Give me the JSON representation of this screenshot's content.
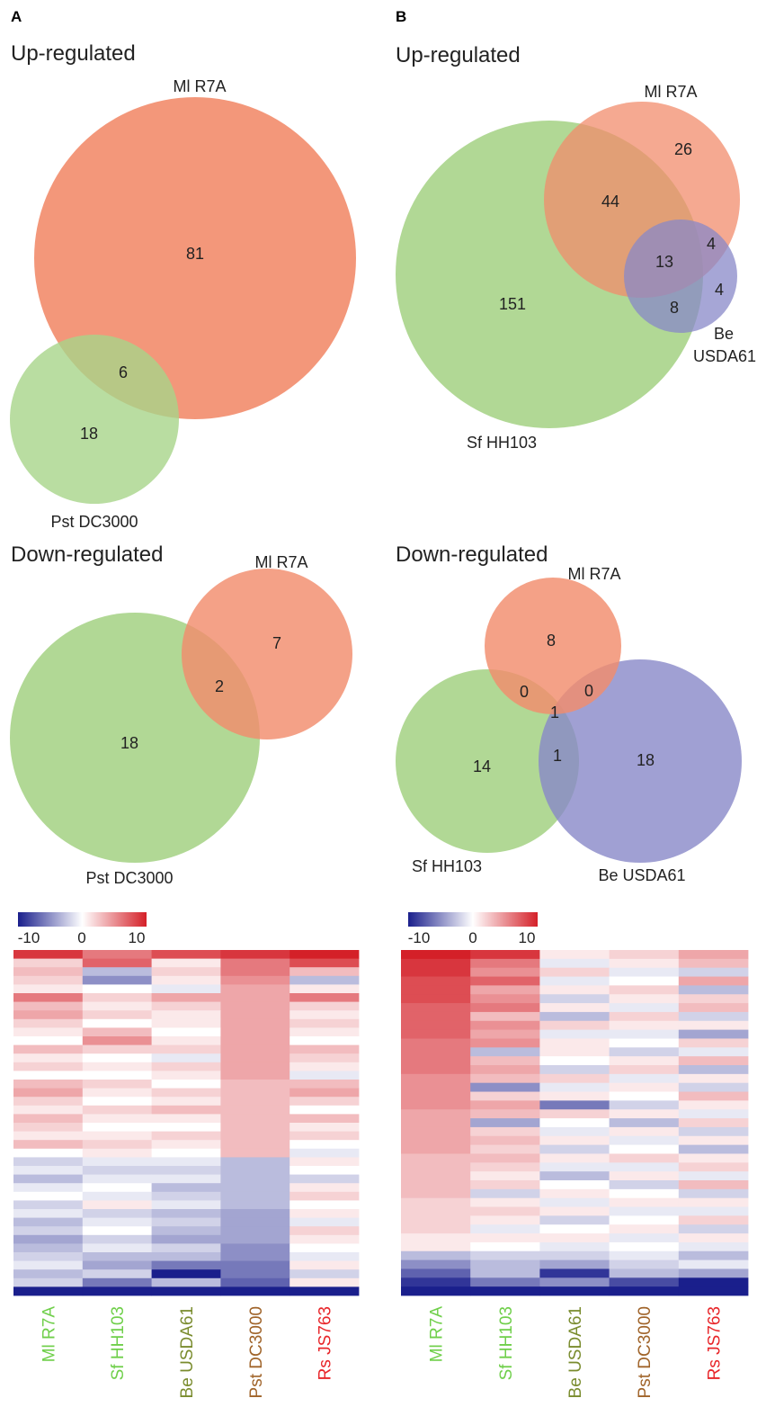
{
  "panels": [
    {
      "letter": "A",
      "sections": [
        "Up-regulated",
        "Down-regulated"
      ]
    },
    {
      "letter": "B",
      "sections": [
        "Up-regulated",
        "Down-regulated"
      ]
    }
  ],
  "colors": {
    "Ml R7A": "#f28c6c",
    "Sf HH103": "#a8d48a",
    "Pst DC3000": "#a8d48a",
    "Be USDA61": "#8888c8",
    "overlap_green_orange": "#b5a35a",
    "heat_low": "#1a1f8c",
    "heat_mid": "#ffffff",
    "heat_high": "#d42028",
    "label_Ml_R7A": "#6fcf4a",
    "label_Sf_HH103": "#6fcf4a",
    "label_Be_USDA61": "#7a8c2e",
    "label_Pst_DC3000": "#a0642a",
    "label_Rs_JS763": "#e8262a"
  },
  "chart_data": [
    {
      "type": "venn",
      "panel": "A",
      "section": "Up-regulated",
      "sets": [
        "Ml R7A",
        "Pst DC3000"
      ],
      "regions": [
        {
          "sets": [
            "Ml R7A"
          ],
          "value": 81
        },
        {
          "sets": [
            "Ml R7A",
            "Pst DC3000"
          ],
          "value": 6
        },
        {
          "sets": [
            "Pst DC3000"
          ],
          "value": 18
        }
      ]
    },
    {
      "type": "venn",
      "panel": "A",
      "section": "Down-regulated",
      "sets": [
        "Ml R7A",
        "Pst DC3000"
      ],
      "regions": [
        {
          "sets": [
            "Ml R7A"
          ],
          "value": 7
        },
        {
          "sets": [
            "Ml R7A",
            "Pst DC3000"
          ],
          "value": 2
        },
        {
          "sets": [
            "Pst DC3000"
          ],
          "value": 18
        }
      ]
    },
    {
      "type": "venn",
      "panel": "B",
      "section": "Up-regulated",
      "sets": [
        "Ml R7A",
        "Sf HH103",
        "Be USDA61"
      ],
      "regions": [
        {
          "sets": [
            "Ml R7A"
          ],
          "value": 26
        },
        {
          "sets": [
            "Ml R7A",
            "Sf HH103"
          ],
          "value": 44
        },
        {
          "sets": [
            "Ml R7A",
            "Be USDA61"
          ],
          "value": 4
        },
        {
          "sets": [
            "Ml R7A",
            "Sf HH103",
            "Be USDA61"
          ],
          "value": 13
        },
        {
          "sets": [
            "Be USDA61"
          ],
          "value": 4
        },
        {
          "sets": [
            "Sf HH103",
            "Be USDA61"
          ],
          "value": 8
        },
        {
          "sets": [
            "Sf HH103"
          ],
          "value": 151
        }
      ]
    },
    {
      "type": "venn",
      "panel": "B",
      "section": "Down-regulated",
      "sets": [
        "Ml R7A",
        "Sf HH103",
        "Be USDA61"
      ],
      "regions": [
        {
          "sets": [
            "Ml R7A"
          ],
          "value": 8
        },
        {
          "sets": [
            "Ml R7A",
            "Sf HH103"
          ],
          "value": 0
        },
        {
          "sets": [
            "Ml R7A",
            "Be USDA61"
          ],
          "value": 0
        },
        {
          "sets": [
            "Ml R7A",
            "Sf HH103",
            "Be USDA61"
          ],
          "value": 1
        },
        {
          "sets": [
            "Sf HH103"
          ],
          "value": 14
        },
        {
          "sets": [
            "Sf HH103",
            "Be USDA61"
          ],
          "value": 1
        },
        {
          "sets": [
            "Be USDA61"
          ],
          "value": 18
        }
      ]
    },
    {
      "type": "heatmap",
      "panel": "A",
      "columns": [
        "Ml R7A",
        "Sf HH103",
        "Be USDA61",
        "Pst DC3000",
        "Rs JS763"
      ],
      "colorbar": {
        "ticks": [
          "-10",
          "0",
          "10"
        ],
        "range": [
          -10,
          10
        ]
      },
      "rows": [
        [
          9,
          6,
          8,
          9,
          10
        ],
        [
          2,
          7,
          1,
          6,
          8
        ],
        [
          3,
          -3,
          2,
          6,
          3
        ],
        [
          2,
          -5,
          1,
          5,
          -3
        ],
        [
          1,
          0,
          -1,
          4,
          1
        ],
        [
          6,
          2,
          4,
          4,
          6
        ],
        [
          3,
          1,
          2,
          4,
          2
        ],
        [
          4,
          2,
          1,
          4,
          1
        ],
        [
          2,
          0,
          1,
          4,
          2
        ],
        [
          1,
          3,
          0,
          4,
          1
        ],
        [
          0,
          5,
          1,
          4,
          0
        ],
        [
          3,
          2,
          2,
          4,
          3
        ],
        [
          1,
          0,
          -1,
          4,
          2
        ],
        [
          2,
          1,
          2,
          4,
          1
        ],
        [
          0,
          0,
          1,
          4,
          -1
        ],
        [
          3,
          2,
          0,
          3,
          3
        ],
        [
          4,
          1,
          2,
          3,
          4
        ],
        [
          2,
          0,
          1,
          3,
          2
        ],
        [
          1,
          2,
          3,
          3,
          0
        ],
        [
          3,
          1,
          1,
          3,
          3
        ],
        [
          2,
          0,
          0,
          3,
          1
        ],
        [
          1,
          1,
          2,
          3,
          2
        ],
        [
          3,
          2,
          1,
          3,
          0
        ],
        [
          0,
          1,
          0,
          3,
          -1
        ],
        [
          -2,
          -1,
          -1,
          -3,
          1
        ],
        [
          -1,
          -2,
          -2,
          -3,
          0
        ],
        [
          -3,
          -1,
          -1,
          -3,
          -2
        ],
        [
          -1,
          0,
          -3,
          -3,
          1
        ],
        [
          0,
          -1,
          -2,
          -3,
          2
        ],
        [
          -2,
          1,
          -1,
          -3,
          0
        ],
        [
          -1,
          -2,
          -3,
          -4,
          1
        ],
        [
          -3,
          -1,
          -2,
          -4,
          -1
        ],
        [
          -2,
          0,
          -3,
          -4,
          2
        ],
        [
          -4,
          -2,
          -4,
          -4,
          1
        ],
        [
          -3,
          -1,
          -2,
          -5,
          0
        ],
        [
          -2,
          -3,
          -3,
          -5,
          -1
        ],
        [
          -1,
          -4,
          -6,
          -6,
          1
        ],
        [
          -3,
          -2,
          -10,
          -6,
          -2
        ],
        [
          -2,
          -6,
          -3,
          -7,
          1
        ],
        [
          -13,
          -12,
          -12,
          -12,
          -12
        ]
      ]
    },
    {
      "type": "heatmap",
      "panel": "B",
      "columns": [
        "Ml R7A",
        "Sf HH103",
        "Be USDA61",
        "Pst DC3000",
        "Rs JS763"
      ],
      "colorbar": {
        "ticks": [
          "-10",
          "0",
          "10"
        ],
        "range": [
          -10,
          10
        ]
      },
      "rows": [
        [
          10,
          9,
          1,
          2,
          4
        ],
        [
          9,
          6,
          -1,
          1,
          3
        ],
        [
          9,
          5,
          2,
          -1,
          -2
        ],
        [
          8,
          7,
          -1,
          0,
          4
        ],
        [
          8,
          4,
          1,
          2,
          -3
        ],
        [
          8,
          5,
          -2,
          1,
          2
        ],
        [
          7,
          6,
          1,
          -1,
          3
        ],
        [
          7,
          3,
          -3,
          2,
          -2
        ],
        [
          7,
          5,
          2,
          1,
          1
        ],
        [
          7,
          4,
          -1,
          -1,
          -4
        ],
        [
          6,
          5,
          1,
          0,
          2
        ],
        [
          6,
          -3,
          1,
          -2,
          -1
        ],
        [
          6,
          3,
          0,
          1,
          3
        ],
        [
          6,
          4,
          -2,
          2,
          -3
        ],
        [
          5,
          3,
          2,
          -1,
          1
        ],
        [
          5,
          -5,
          -1,
          1,
          -2
        ],
        [
          5,
          2,
          1,
          0,
          3
        ],
        [
          5,
          4,
          -6,
          -2,
          1
        ],
        [
          4,
          3,
          2,
          1,
          -1
        ],
        [
          4,
          -4,
          0,
          -3,
          2
        ],
        [
          4,
          2,
          -1,
          1,
          -2
        ],
        [
          4,
          3,
          1,
          -1,
          1
        ],
        [
          4,
          2,
          -2,
          0,
          -3
        ],
        [
          3,
          3,
          1,
          2,
          1
        ],
        [
          3,
          2,
          -1,
          -1,
          2
        ],
        [
          3,
          1,
          -3,
          1,
          -1
        ],
        [
          3,
          2,
          0,
          -2,
          3
        ],
        [
          3,
          -2,
          1,
          0,
          -2
        ],
        [
          2,
          1,
          -1,
          1,
          1
        ],
        [
          2,
          2,
          1,
          -1,
          -1
        ],
        [
          2,
          1,
          -2,
          0,
          2
        ],
        [
          2,
          -1,
          0,
          1,
          -2
        ],
        [
          1,
          1,
          1,
          -1,
          1
        ],
        [
          1,
          0,
          -1,
          0,
          -1
        ],
        [
          -3,
          -2,
          -2,
          -1,
          -3
        ],
        [
          -5,
          -3,
          -4,
          -2,
          -1
        ],
        [
          -7,
          -3,
          -9,
          -3,
          -4
        ],
        [
          -9,
          -6,
          -5,
          -8,
          -10
        ],
        [
          -12,
          -10,
          -12,
          -12,
          -12
        ]
      ]
    }
  ]
}
